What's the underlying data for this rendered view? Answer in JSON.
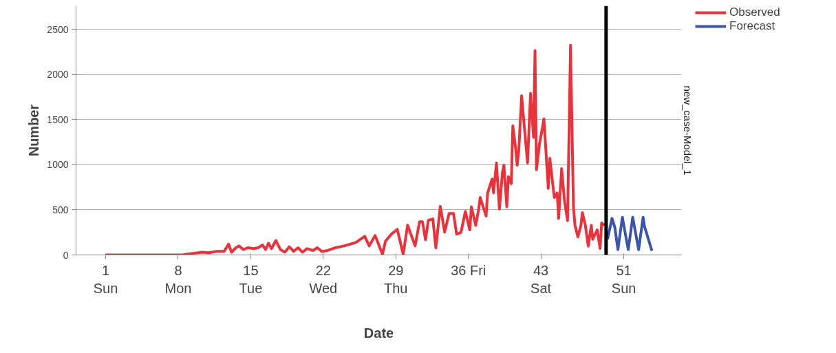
{
  "chart_data": {
    "type": "line",
    "xlabel": "Date",
    "ylabel": "Number",
    "annotations": [
      "new_case-Model_1"
    ],
    "xlim": [
      -1.86,
      56.57
    ],
    "ylim": [
      0,
      2760
    ],
    "xticks": [
      {
        "value": 1,
        "label": "1\nSun"
      },
      {
        "value": 8,
        "label": "8\nMon"
      },
      {
        "value": 15,
        "label": "15\nTue"
      },
      {
        "value": 22,
        "label": "22\nWed"
      },
      {
        "value": 29,
        "label": "29\nThu"
      },
      {
        "value": 36,
        "label": "36 Fri"
      },
      {
        "value": 43,
        "label": "43\nSat"
      },
      {
        "value": 51,
        "label": "51\nSun"
      }
    ],
    "yticks": [
      0,
      500,
      1000,
      1500,
      2000,
      2500
    ],
    "grid": "y",
    "legend": "top right",
    "marker": "none",
    "line_style": "solid",
    "ref_lines": [
      {
        "axis": "x",
        "value": 49.29,
        "label": null,
        "color": "#000000"
      }
    ],
    "series": [
      {
        "name": "Observed",
        "color": "#e8333c",
        "x": [
          1,
          8.43,
          8.86,
          9.57,
          10.29,
          11,
          11.71,
          12.43,
          12.86,
          13.14,
          13.57,
          13.86,
          14.29,
          14.71,
          15.29,
          15.71,
          16.14,
          16.43,
          16.71,
          17,
          17.43,
          17.86,
          18.29,
          18.71,
          19.14,
          19.57,
          20,
          20.43,
          21,
          21.43,
          21.86,
          22.43,
          23.14,
          24,
          25.14,
          26,
          26.43,
          27,
          27.71,
          28,
          28.57,
          29.14,
          29.71,
          30.14,
          30.86,
          31.29,
          31.57,
          31.86,
          32.14,
          32.57,
          32.86,
          33.29,
          33.71,
          34.14,
          34.57,
          34.86,
          35.29,
          35.71,
          36.14,
          36.29,
          36.71,
          37,
          37.14,
          37.43,
          37.71,
          37.86,
          38.29,
          38.43,
          38.71,
          39,
          39.29,
          39.43,
          39.71,
          39.86,
          40.14,
          40.29,
          40.57,
          40.71,
          40.86,
          41.14,
          41.43,
          41.71,
          42,
          42.29,
          42.43,
          42.57,
          42.86,
          43.14,
          43.29,
          43.71,
          43.86,
          44.14,
          44.29,
          44.57,
          44.71,
          45,
          45.29,
          45.57,
          45.86,
          46.14,
          46.29,
          46.57,
          46.86,
          47,
          47.29,
          47.57,
          47.86,
          48,
          48.43,
          48.71,
          48.86,
          49.14
        ],
        "values": [
          0,
          0,
          10,
          20,
          30,
          25,
          40,
          40,
          120,
          30,
          80,
          100,
          60,
          80,
          70,
          80,
          110,
          60,
          130,
          70,
          160,
          60,
          30,
          90,
          40,
          80,
          30,
          70,
          50,
          80,
          38,
          50,
          80,
          100,
          138,
          207,
          100,
          215,
          8,
          153,
          230,
          284,
          8,
          330,
          100,
          368,
          368,
          169,
          384,
          399,
          77,
          537,
          253,
          460,
          460,
          230,
          251,
          482,
          277,
          533,
          328,
          508,
          636,
          533,
          431,
          687,
          841,
          687,
          1020,
          508,
          918,
          995,
          533,
          867,
          790,
          1431,
          1174,
          995,
          1149,
          1764,
          1380,
          1020,
          1790,
          1303,
          2264,
          944,
          1226,
          1405,
          1508,
          738,
          1072,
          790,
          636,
          687,
          405,
          956,
          585,
          380,
          2323,
          533,
          328,
          200,
          328,
          469,
          328,
          97,
          328,
          174,
          277,
          72,
          354,
          328
        ]
      },
      {
        "name": "Forecast",
        "color": "#3b55a8",
        "x": [
          49.43,
          49.86,
          50.14,
          50.43,
          50.86,
          51,
          51.43,
          51.86,
          52,
          52.43,
          52.86,
          53,
          53.71
        ],
        "values": [
          174,
          405,
          302,
          59,
          418,
          328,
          59,
          418,
          328,
          59,
          418,
          315,
          46
        ]
      }
    ]
  }
}
